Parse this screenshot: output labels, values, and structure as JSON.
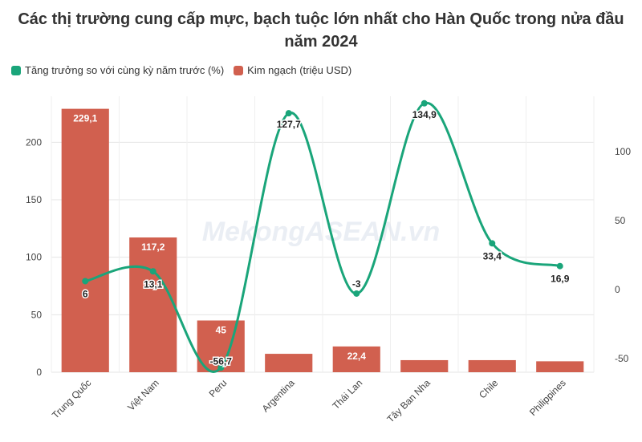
{
  "title": "Các thị trường cung cấp mực, bạch tuộc lớn nhất cho Hàn Quốc trong nửa đầu năm 2024",
  "watermark": "MekongASEAN.vn",
  "colors": {
    "bar": "#d1604f",
    "line": "#1aa57a",
    "grid": "#e5e5e5"
  },
  "legend": [
    {
      "name": "Tăng trưởng so với cùng kỳ năm trước (%)",
      "color": "#1aa57a"
    },
    {
      "name": "Kim ngạch (triệu USD)",
      "color": "#d1604f"
    }
  ],
  "chart_data": {
    "type": "bar",
    "categories": [
      "Trung Quốc",
      "Việt Nam",
      "Peru",
      "Argentina",
      "Thái Lan",
      "Tây Ban Nha",
      "Chile",
      "Philippines"
    ],
    "series": [
      {
        "name": "Kim ngạch (triệu USD)",
        "type": "bar",
        "axis": "left",
        "values": [
          229.1,
          117.2,
          45,
          16,
          22.4,
          10.5,
          10.5,
          9.5
        ],
        "labels": [
          "229,1",
          "117,2",
          "45",
          "",
          "22,4",
          "",
          "",
          ""
        ]
      },
      {
        "name": "Tăng trưởng so với cùng kỳ năm trước (%)",
        "type": "line",
        "axis": "right",
        "values": [
          6,
          13.1,
          -56.7,
          127.7,
          -3,
          134.9,
          33.4,
          16.9
        ],
        "labels": [
          "6",
          "13,1",
          "-56,7",
          "127,7",
          "-3",
          "134,9",
          "33,4",
          "16,9"
        ]
      }
    ],
    "y_left": {
      "range": [
        0,
        240
      ],
      "ticks": [
        "0",
        "50",
        "100",
        "150",
        "200"
      ],
      "tick_values": [
        0,
        50,
        100,
        150,
        200
      ]
    },
    "y_right": {
      "range": [
        -60,
        140
      ],
      "ticks": [
        "-50",
        "0",
        "50",
        "100"
      ],
      "tick_values": [
        -50,
        0,
        50,
        100
      ]
    },
    "grid": true,
    "legend_position": "top-left"
  }
}
